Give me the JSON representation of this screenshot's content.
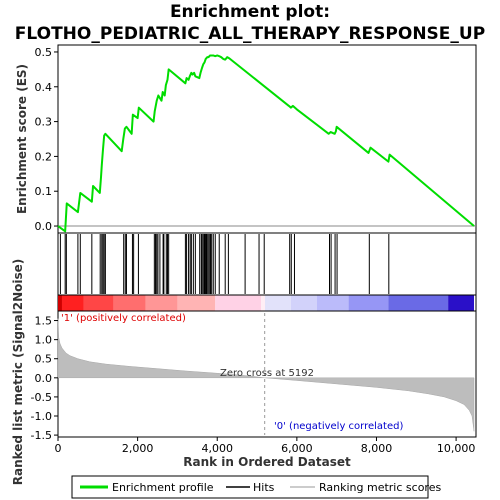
{
  "chart_data": {
    "type": "line",
    "title_lines": [
      "Enrichment plot:",
      "FLOTHO_PEDIATRIC_ALL_THERAPY_RESPONSE_UP"
    ],
    "xlabel": "Rank in Ordered Dataset",
    "es_ylabel": "Enrichment score (ES)",
    "metric_ylabel_lines": [
      "Ranked list metric (Signal2Noise)"
    ],
    "xlim": [
      0,
      10500
    ],
    "es_ylim": [
      -0.02,
      0.52
    ],
    "metric_ylim": [
      -1.55,
      1.75
    ],
    "x_ticks": [
      0,
      2000,
      4000,
      6000,
      8000,
      10000
    ],
    "x_tick_labels": [
      "0",
      "2,000",
      "4,000",
      "6,000",
      "8,000",
      "10,000"
    ],
    "es_ticks": [
      0.0,
      0.1,
      0.2,
      0.3,
      0.4,
      0.5
    ],
    "es_tick_labels": [
      "0.0",
      "0.1",
      "0.2",
      "0.3",
      "0.4",
      "0.5"
    ],
    "metric_ticks": [
      -1.5,
      -1.0,
      -0.5,
      0.0,
      0.5,
      1.0,
      1.5
    ],
    "metric_tick_labels": [
      "-1.5",
      "-1.0",
      "-0.5",
      "0.0",
      "0.5",
      "1.0",
      "1.5"
    ],
    "zero_cross_rank": 5192,
    "zero_cross_text": "Zero cross at 5192",
    "positive_label": "'1' (positively correlated)",
    "negative_label": "'0' (negatively correlated)",
    "series": [
      {
        "name": "Enrichment profile",
        "color": "#00dd00",
        "x": [
          0,
          180,
          220,
          500,
          560,
          850,
          880,
          1050,
          1080,
          1100,
          1130,
          1160,
          1190,
          1600,
          1640,
          1680,
          1720,
          1850,
          1880,
          2000,
          2030,
          2400,
          2430,
          2480,
          2520,
          2600,
          2630,
          2680,
          2710,
          2750,
          2780,
          3200,
          3230,
          3280,
          3310,
          3350,
          3380,
          3420,
          3450,
          3550,
          3580,
          3620,
          3650,
          3680,
          3710,
          3750,
          3780,
          3820,
          3850,
          3900,
          3950,
          4000,
          4050,
          4100,
          4150,
          4200,
          4250,
          4300,
          5800,
          5850,
          5900,
          5950,
          6000,
          6800,
          6850,
          6950,
          6980,
          7000,
          7800,
          7850,
          8300,
          8330,
          10450
        ],
        "y": [
          0.0,
          -0.015,
          0.065,
          0.04,
          0.095,
          0.07,
          0.115,
          0.095,
          0.14,
          0.175,
          0.22,
          0.26,
          0.265,
          0.215,
          0.25,
          0.28,
          0.285,
          0.265,
          0.32,
          0.31,
          0.34,
          0.3,
          0.33,
          0.36,
          0.375,
          0.36,
          0.385,
          0.375,
          0.405,
          0.42,
          0.45,
          0.41,
          0.425,
          0.42,
          0.43,
          0.44,
          0.435,
          0.44,
          0.43,
          0.425,
          0.44,
          0.455,
          0.465,
          0.47,
          0.48,
          0.485,
          0.485,
          0.49,
          0.49,
          0.49,
          0.488,
          0.49,
          0.488,
          0.485,
          0.48,
          0.478,
          0.485,
          0.482,
          0.345,
          0.34,
          0.345,
          0.34,
          0.335,
          0.265,
          0.27,
          0.265,
          0.272,
          0.285,
          0.21,
          0.225,
          0.185,
          0.205,
          0.0
        ]
      }
    ],
    "hit_ranks": [
      60,
      180,
      210,
      500,
      560,
      850,
      1060,
      1100,
      1130,
      1160,
      1190,
      1650,
      1690,
      1720,
      1870,
      1900,
      2020,
      2420,
      2450,
      2480,
      2510,
      2560,
      2640,
      2660,
      2720,
      2750,
      2780,
      3200,
      3230,
      3280,
      3320,
      3350,
      3400,
      3450,
      3560,
      3600,
      3620,
      3650,
      3680,
      3700,
      3720,
      3740,
      3770,
      3800,
      3830,
      3860,
      3900,
      3950,
      4050,
      4200,
      4280,
      4700,
      5050,
      5180,
      5820,
      5860,
      5940,
      6820,
      6860,
      6960,
      7010,
      7820,
      8310
    ],
    "metric_profile": {
      "x": [
        0,
        20,
        50,
        100,
        200,
        300,
        500,
        800,
        1200,
        1800,
        2500,
        3200,
        4000,
        4800,
        5192,
        6000,
        7000,
        8000,
        8800,
        9300,
        9700,
        10000,
        10200,
        10330,
        10400,
        10450
      ],
      "y": [
        1.55,
        1.05,
        0.9,
        0.78,
        0.65,
        0.58,
        0.5,
        0.42,
        0.36,
        0.3,
        0.24,
        0.18,
        0.12,
        0.05,
        0.0,
        -0.07,
        -0.16,
        -0.25,
        -0.34,
        -0.42,
        -0.5,
        -0.6,
        -0.7,
        -0.85,
        -1.0,
        -1.4
      ]
    },
    "heatmap_blocks": [
      {
        "x0": 0,
        "x1": 100,
        "color": "#d00000"
      },
      {
        "x0": 100,
        "x1": 650,
        "color": "#ff2020"
      },
      {
        "x0": 650,
        "x1": 1400,
        "color": "#ff4646"
      },
      {
        "x0": 1400,
        "x1": 2200,
        "color": "#ff6e6e"
      },
      {
        "x0": 2200,
        "x1": 3000,
        "color": "#ff9696"
      },
      {
        "x0": 3000,
        "x1": 3950,
        "color": "#ffb4b4"
      },
      {
        "x0": 3950,
        "x1": 5100,
        "color": "#ffd2e6"
      },
      {
        "x0": 5100,
        "x1": 5200,
        "color": "#ffeef5"
      },
      {
        "x0": 5200,
        "x1": 5850,
        "color": "#e2e2fa"
      },
      {
        "x0": 5850,
        "x1": 6500,
        "color": "#d2d2fa"
      },
      {
        "x0": 6500,
        "x1": 7300,
        "color": "#bbbbfa"
      },
      {
        "x0": 7300,
        "x1": 8300,
        "color": "#9696f5"
      },
      {
        "x0": 8300,
        "x1": 9800,
        "color": "#6a6ae6"
      },
      {
        "x0": 9800,
        "x1": 10450,
        "color": "#2a10c8"
      }
    ],
    "legend": {
      "items": [
        {
          "label": "Enrichment profile",
          "color": "#00dd00",
          "kind": "thick-line"
        },
        {
          "label": "Hits",
          "color": "#000000",
          "kind": "line"
        },
        {
          "label": "Ranking metric scores",
          "color": "#bbbbbb",
          "kind": "line"
        }
      ],
      "placement": "bottom"
    }
  }
}
